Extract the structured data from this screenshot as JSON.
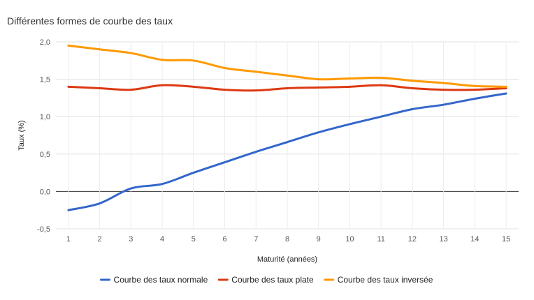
{
  "chart_data": {
    "type": "line",
    "title": "Différentes formes de courbe des taux",
    "xlabel": "Maturité (années)",
    "ylabel": "Taux (%)",
    "x": [
      1,
      2,
      3,
      4,
      5,
      6,
      7,
      8,
      9,
      10,
      11,
      12,
      13,
      14,
      15
    ],
    "x_tick_labels": [
      "1",
      "2",
      "3",
      "4",
      "5",
      "6",
      "7",
      "8",
      "9",
      "10",
      "11",
      "12",
      "13",
      "14",
      "15"
    ],
    "ylim": [
      -0.5,
      2.0
    ],
    "y_ticks": [
      -0.5,
      0.0,
      0.5,
      1.0,
      1.5,
      2.0
    ],
    "y_tick_labels": [
      "-0,5",
      "0,0",
      "0,5",
      "1,0",
      "1,5",
      "2,0"
    ],
    "grid": true,
    "legend_position": "bottom",
    "series": [
      {
        "name": "Courbe des taux normale",
        "color": "#3366cc",
        "values": [
          -0.25,
          -0.16,
          0.04,
          0.1,
          0.25,
          0.39,
          0.53,
          0.66,
          0.79,
          0.9,
          1.0,
          1.1,
          1.16,
          1.24,
          1.31
        ]
      },
      {
        "name": "Courbe des taux plate",
        "color": "#dc3912",
        "values": [
          1.4,
          1.38,
          1.36,
          1.42,
          1.4,
          1.36,
          1.35,
          1.38,
          1.39,
          1.4,
          1.42,
          1.38,
          1.36,
          1.36,
          1.38
        ]
      },
      {
        "name": "Courbe des taux inversée",
        "color": "#ff9900",
        "values": [
          1.95,
          1.9,
          1.85,
          1.76,
          1.75,
          1.65,
          1.6,
          1.55,
          1.5,
          1.51,
          1.52,
          1.48,
          1.45,
          1.41,
          1.4
        ]
      }
    ]
  }
}
